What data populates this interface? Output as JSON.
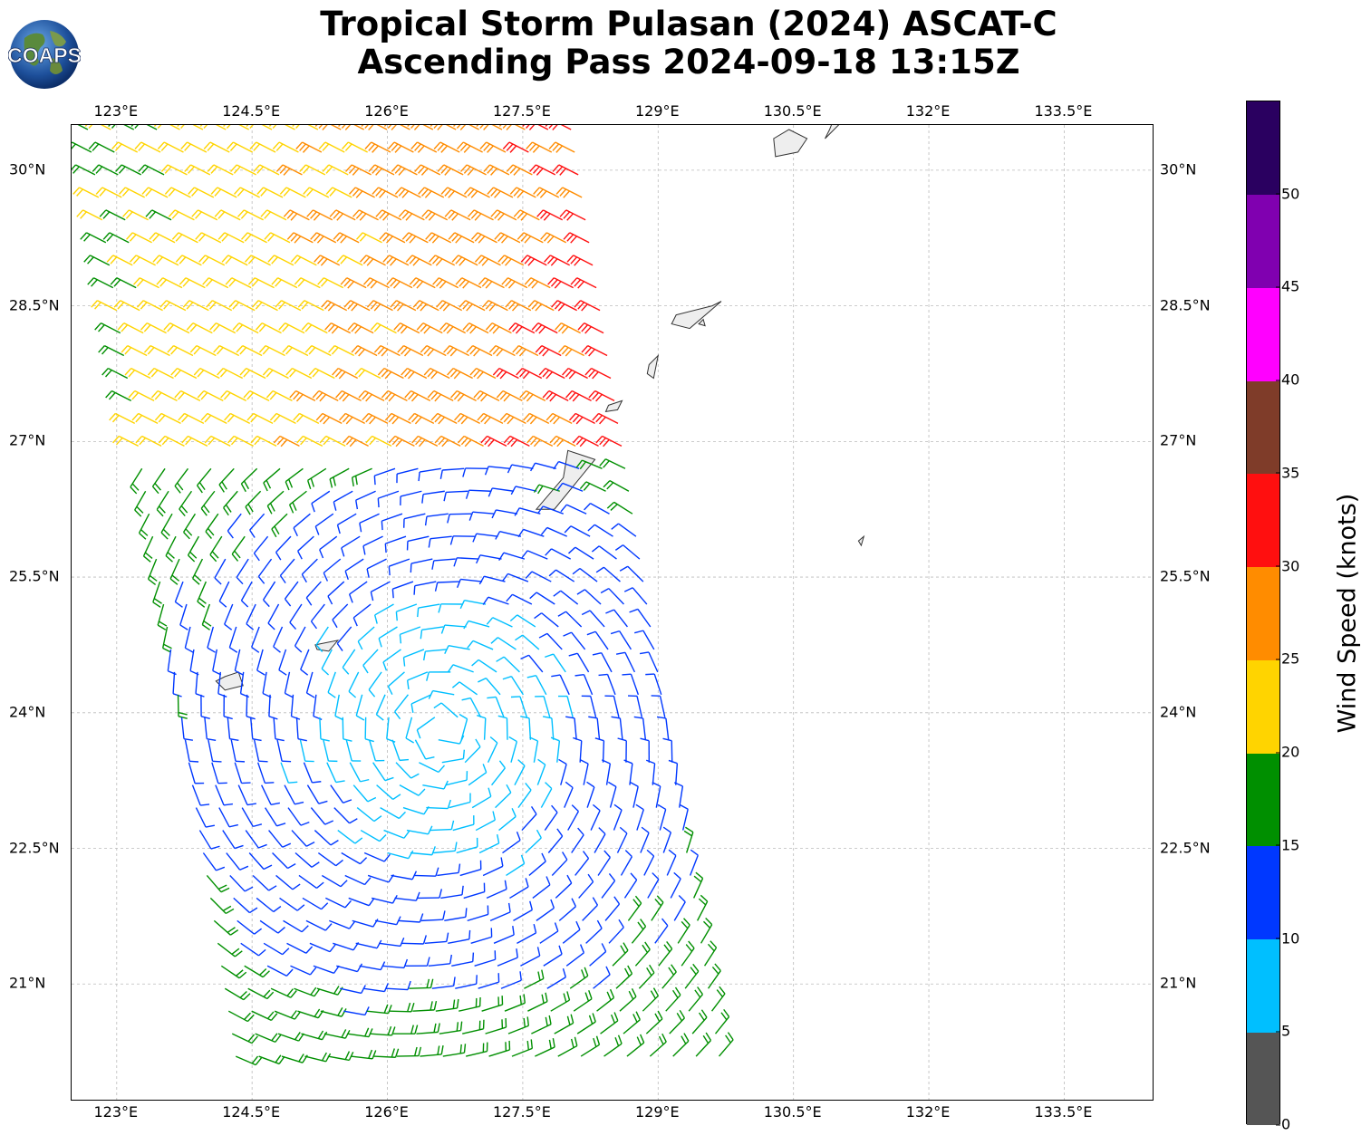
{
  "title": {
    "line1": "Tropical Storm Pulasan (2024) ASCAT-C",
    "line2": "Ascending Pass 2024-09-18 13:15Z"
  },
  "logo": {
    "text": "COAPS"
  },
  "map": {
    "lon_range": [
      122.5,
      134.5
    ],
    "lat_range": [
      19.7,
      30.5
    ],
    "lon_ticks": [
      "123°E",
      "124.5°E",
      "126°E",
      "127.5°E",
      "129°E",
      "130.5°E",
      "132°E",
      "133.5°E"
    ],
    "lat_ticks": [
      "30°N",
      "28.5°N",
      "27°N",
      "25.5°N",
      "24°N",
      "22.5°N",
      "21°N"
    ],
    "gridlines": true
  },
  "colorbar": {
    "label": "Wind Speed (knots)",
    "ticks": [
      "0",
      "5",
      "10",
      "15",
      "20",
      "25",
      "30",
      "35",
      "40",
      "45",
      "50"
    ],
    "colors": [
      "#555555",
      "#00bfff",
      "#0038ff",
      "#008f00",
      "#ffd400",
      "#ff8c00",
      "#ff0f0f",
      "#7f3c29",
      "#ff00ff",
      "#8000b0",
      "#2a0060"
    ],
    "max": 55
  }
}
